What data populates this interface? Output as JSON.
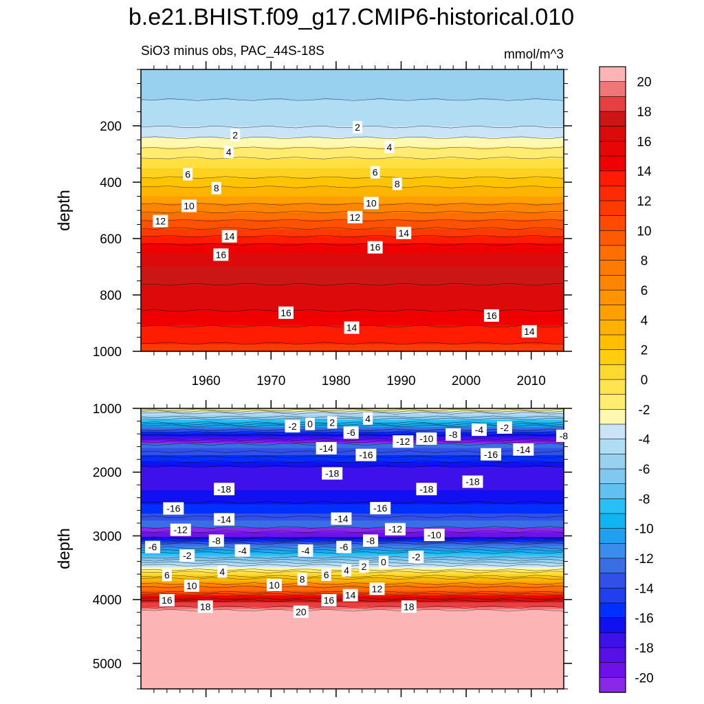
{
  "title": "b.e21.BHIST.f09_g17.CMIP6-historical.010",
  "subtitle_left": "SiO3 minus obs, PAC_44S-18S",
  "subtitle_right": "mmol/m^3",
  "chart_data": [
    {
      "type": "heatmap",
      "panel": "upper",
      "ylabel": "depth",
      "ylim": [
        0,
        1000
      ],
      "y_reversed": true,
      "xlim": [
        1950,
        2015
      ],
      "xticks": [
        1960,
        1970,
        1980,
        1990,
        2000,
        2010
      ],
      "yticks": [
        200,
        400,
        600,
        800,
        1000
      ],
      "profile_depths": [
        0,
        150,
        200,
        250,
        300,
        350,
        400,
        450,
        500,
        550,
        600,
        650,
        700,
        750,
        800,
        850,
        900,
        950,
        1000
      ],
      "profile_values": [
        0.5,
        1.2,
        1.9,
        3.2,
        4.6,
        6.0,
        7.5,
        9.0,
        10.8,
        12.5,
        14.3,
        16.0,
        17.0,
        17.1,
        16.7,
        16.1,
        15.2,
        14.3,
        13.6
      ],
      "contour_labels": [
        {
          "t": "2",
          "x": 1964.5,
          "y": 233
        },
        {
          "t": "2",
          "x": 1983.3,
          "y": 205
        },
        {
          "t": "4",
          "x": 1963.5,
          "y": 293
        },
        {
          "t": "4",
          "x": 1988.2,
          "y": 275
        },
        {
          "t": "6",
          "x": 1957.2,
          "y": 372
        },
        {
          "t": "6",
          "x": 1986.0,
          "y": 365
        },
        {
          "t": "8",
          "x": 1961.6,
          "y": 421
        },
        {
          "t": "8",
          "x": 1989.4,
          "y": 406
        },
        {
          "t": "10",
          "x": 1957.4,
          "y": 484
        },
        {
          "t": "10",
          "x": 1985.4,
          "y": 474
        },
        {
          "t": "12",
          "x": 1953.0,
          "y": 538
        },
        {
          "t": "12",
          "x": 1982.9,
          "y": 524
        },
        {
          "t": "14",
          "x": 1963.6,
          "y": 592
        },
        {
          "t": "14",
          "x": 1990.4,
          "y": 580
        },
        {
          "t": "16",
          "x": 1962.3,
          "y": 657
        },
        {
          "t": "16",
          "x": 1986.0,
          "y": 631
        },
        {
          "t": "16",
          "x": 1972.3,
          "y": 863
        },
        {
          "t": "16",
          "x": 2003.9,
          "y": 873
        },
        {
          "t": "14",
          "x": 1982.4,
          "y": 916
        },
        {
          "t": "14",
          "x": 2009.7,
          "y": 929
        }
      ]
    },
    {
      "type": "heatmap",
      "panel": "lower",
      "ylabel": "depth",
      "ylim": [
        1000,
        5400
      ],
      "y_reversed": true,
      "xlim": [
        1950,
        2015
      ],
      "yticks": [
        1000,
        2000,
        3000,
        4000,
        5000
      ],
      "profile_depths": [
        1000,
        1100,
        1200,
        1300,
        1450,
        1600,
        1800,
        1950,
        2100,
        2350,
        2600,
        2800,
        3000,
        3150,
        3300,
        3400,
        3500,
        3600,
        3700,
        3850,
        3950,
        4050,
        4150,
        4200,
        5400
      ],
      "profile_values": [
        5.0,
        1.0,
        -2.0,
        -6.0,
        -10.0,
        -14.0,
        -16.5,
        -18.5,
        -19.0,
        -18.0,
        -16.0,
        -14.0,
        -11.0,
        -6.0,
        -2.0,
        0.5,
        3.0,
        6.0,
        9.0,
        12.0,
        15.0,
        18.0,
        19.5,
        21.0,
        21.0
      ],
      "contour_labels": [
        {
          "t": "-2",
          "x": 1973.3,
          "y": 1280
        },
        {
          "t": "0",
          "x": 1976.0,
          "y": 1245
        },
        {
          "t": "2",
          "x": 1979.4,
          "y": 1220
        },
        {
          "t": "4",
          "x": 1984.9,
          "y": 1160
        },
        {
          "t": "-6",
          "x": 1982.3,
          "y": 1380
        },
        {
          "t": "-12",
          "x": 1990.3,
          "y": 1520
        },
        {
          "t": "-10",
          "x": 1993.9,
          "y": 1475
        },
        {
          "t": "-8",
          "x": 1998.0,
          "y": 1410
        },
        {
          "t": "-4",
          "x": 2002.0,
          "y": 1335
        },
        {
          "t": "-2",
          "x": 2005.9,
          "y": 1300
        },
        {
          "t": "-8",
          "x": 2015.0,
          "y": 1430
        },
        {
          "t": "-14",
          "x": 1978.5,
          "y": 1625
        },
        {
          "t": "-16",
          "x": 1984.6,
          "y": 1730
        },
        {
          "t": "-16",
          "x": 2003.8,
          "y": 1720
        },
        {
          "t": "-14",
          "x": 2008.8,
          "y": 1645
        },
        {
          "t": "-18",
          "x": 1979.4,
          "y": 2020
        },
        {
          "t": "-18",
          "x": 1962.8,
          "y": 2265
        },
        {
          "t": "-18",
          "x": 1993.9,
          "y": 2265
        },
        {
          "t": "-18",
          "x": 2001.0,
          "y": 2150
        },
        {
          "t": "-16",
          "x": 1955.0,
          "y": 2570
        },
        {
          "t": "-16",
          "x": 1986.8,
          "y": 2565
        },
        {
          "t": "-14",
          "x": 1962.8,
          "y": 2740
        },
        {
          "t": "-14",
          "x": 1980.8,
          "y": 2730
        },
        {
          "t": "-12",
          "x": 1956.1,
          "y": 2905
        },
        {
          "t": "-12",
          "x": 1989.1,
          "y": 2895
        },
        {
          "t": "-10",
          "x": 1995.1,
          "y": 2985
        },
        {
          "t": "-8",
          "x": 1961.6,
          "y": 3075
        },
        {
          "t": "-8",
          "x": 1985.3,
          "y": 3075
        },
        {
          "t": "-6",
          "x": 1951.8,
          "y": 3175
        },
        {
          "t": "-6",
          "x": 1981.2,
          "y": 3175
        },
        {
          "t": "-4",
          "x": 1965.6,
          "y": 3230
        },
        {
          "t": "-4",
          "x": 1975.3,
          "y": 3230
        },
        {
          "t": "-2",
          "x": 1957.1,
          "y": 3310
        },
        {
          "t": "-2",
          "x": 1992.3,
          "y": 3330
        },
        {
          "t": "0",
          "x": 1987.3,
          "y": 3410
        },
        {
          "t": "2",
          "x": 1984.3,
          "y": 3480
        },
        {
          "t": "4",
          "x": 1962.5,
          "y": 3560
        },
        {
          "t": "4",
          "x": 1981.6,
          "y": 3540
        },
        {
          "t": "6",
          "x": 1954.0,
          "y": 3615
        },
        {
          "t": "6",
          "x": 1978.5,
          "y": 3610
        },
        {
          "t": "8",
          "x": 1974.8,
          "y": 3680
        },
        {
          "t": "10",
          "x": 1957.8,
          "y": 3780
        },
        {
          "t": "10",
          "x": 1970.5,
          "y": 3770
        },
        {
          "t": "12",
          "x": 1986.3,
          "y": 3830
        },
        {
          "t": "14",
          "x": 1982.2,
          "y": 3930
        },
        {
          "t": "16",
          "x": 1954.0,
          "y": 4010
        },
        {
          "t": "16",
          "x": 1978.9,
          "y": 4010
        },
        {
          "t": "18",
          "x": 1959.9,
          "y": 4110
        },
        {
          "t": "18",
          "x": 1991.2,
          "y": 4110
        },
        {
          "t": "20",
          "x": 1974.6,
          "y": 4190
        }
      ]
    }
  ],
  "colorbar": {
    "labels": [
      "20",
      "18",
      "16",
      "14",
      "12",
      "10",
      "8",
      "6",
      "4",
      "2",
      "0",
      "-2",
      "-4",
      "-6",
      "-8",
      "-10",
      "-12",
      "-14",
      "-16",
      "-18",
      "-20"
    ],
    "colors": [
      "#fcb4b4",
      "#f07777",
      "#e84040",
      "#cc1616",
      "#dc0a0a",
      "#f00000",
      "#ff1c00",
      "#ff3a00",
      "#ff5200",
      "#ff6e00",
      "#ff8400",
      "#ffa000",
      "#ffb400",
      "#ffc400",
      "#ffd220",
      "#ffe040",
      "#ffec70",
      "#fff8b0",
      "#c8e4f6",
      "#b0dcf4",
      "#98d0f0",
      "#80c8f0",
      "#60c0f0",
      "#28c0f4",
      "#10b4f0",
      "#20a0f0",
      "#3c8cec",
      "#3a6ee4",
      "#3050e8",
      "#0030ff",
      "#1010f0",
      "#3e10ea",
      "#6e10e8",
      "#8828e8"
    ],
    "values": [
      20.5,
      19.5,
      18.5,
      17.5,
      16.5,
      15.5,
      14.5,
      13.5,
      12.5,
      11.5,
      10.5,
      9.5,
      8.5,
      7.5,
      6.5,
      5.5,
      4.5,
      3.5,
      2.5,
      1.5,
      0.5,
      -0.5,
      -1.5,
      -2.5,
      -3.5,
      -4.5,
      -5.5,
      -6.5,
      -7.5,
      -8.5,
      -9.5,
      -10.5,
      -11.5,
      -12.5
    ]
  }
}
